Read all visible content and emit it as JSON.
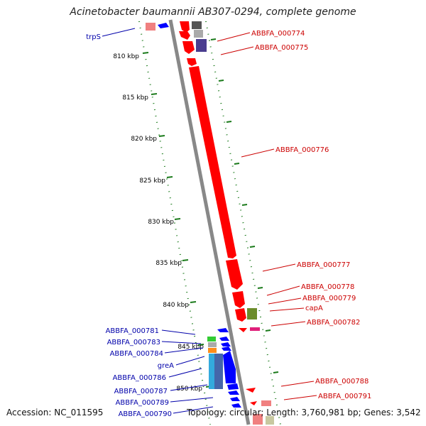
{
  "title": "Acinetobacter baumannii AB307-0294, complete genome",
  "footer": {
    "accession": "Accession: NC_011595",
    "summary": "Topology: circular; Length: 3,760,981 bp; Genes: 3,542"
  },
  "colors": {
    "forward_label": "#cc0000",
    "reverse_label": "#0000aa",
    "backbone": "#888888",
    "tick": "#1a7a1a",
    "forward_gene": "#ff0000",
    "reverse_gene": "#0000ff"
  },
  "ticks": [
    "810 kbp",
    "815 kbp",
    "820 kbp",
    "825 kbp",
    "830 kbp",
    "835 kbp",
    "840 kbp",
    "845 kbp",
    "850 kbp"
  ],
  "forward_labels": [
    "ABBFA_000774",
    "ABBFA_000775",
    "ABBFA_000776",
    "ABBFA_000777",
    "ABBFA_000778",
    "ABBFA_000779",
    "capA",
    "ABBFA_000782",
    "ABBFA_000788",
    "ABBFA_000791"
  ],
  "reverse_labels": [
    "trpS",
    "ABBFA_000781",
    "ABBFA_000783",
    "ABBFA_000784",
    "greA",
    "ABBFA_000786",
    "ABBFA_000787",
    "ABBFA_000789",
    "ABBFA_000790"
  ]
}
